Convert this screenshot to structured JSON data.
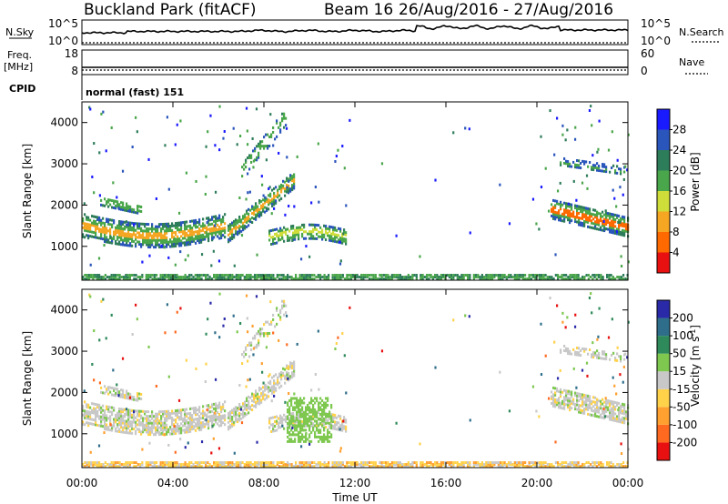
{
  "header": {
    "title": "Buckland Park (fitACF)",
    "beam": "Beam 16",
    "date_range": "26/Aug/2016 - 27/Aug/2016"
  },
  "nsky_panel": {
    "left_label": "N.Sky",
    "left_ticks": [
      "10^5",
      "10^0"
    ],
    "right_label": "N.Search",
    "right_ticks": [
      "10^5",
      "10^0"
    ]
  },
  "freq_panel": {
    "left_label_line1": "Freq.",
    "left_label_line2": "[MHz]",
    "left_ticks": [
      "18",
      "8"
    ],
    "right_label": "Nave",
    "right_ticks": [
      "60",
      "0"
    ]
  },
  "cpid": {
    "label": "CPID",
    "value": "normal (fast) 151"
  },
  "chart_data": [
    {
      "type": "heatmap",
      "quantity": "Power",
      "ylabel": "Slant Range [km]",
      "ylim": [
        180,
        4500
      ],
      "yticks": [
        "1000",
        "2000",
        "3000",
        "4000"
      ],
      "colorbar_label": "Power [dB]",
      "colorbar_ticks": [
        "4",
        "8",
        "12",
        "16",
        "20",
        "24",
        "28"
      ],
      "colorbar_colors": [
        "#1a1aff",
        "#2a55bb",
        "#2e7d5a",
        "#4aa64a",
        "#cfdd3a",
        "#f5a623",
        "#ff6a00",
        "#e81010"
      ]
    },
    {
      "type": "heatmap",
      "quantity": "Velocity",
      "ylabel": "Slant Range [km]",
      "ylim": [
        180,
        4500
      ],
      "yticks": [
        "1000",
        "2000",
        "3000",
        "4000"
      ],
      "colorbar_label": "Velocity [m s",
      "colorbar_label_sup": "-1",
      "colorbar_label_end": "]",
      "colorbar_ticks": [
        "200",
        "100",
        "50",
        "15",
        "-15",
        "-50",
        "-100",
        "-200"
      ],
      "colorbar_colors": [
        "#2a2aa8",
        "#2e6e8a",
        "#2e8a5a",
        "#7ec850",
        "#c8c8c8",
        "#ffd24a",
        "#ffa030",
        "#ff6a20",
        "#e81010"
      ]
    }
  ],
  "time_axis": {
    "xlabel": "Time UT",
    "ticks": [
      "00:00",
      "04:00",
      "08:00",
      "12:00",
      "16:00",
      "20:00",
      "00:00"
    ]
  }
}
